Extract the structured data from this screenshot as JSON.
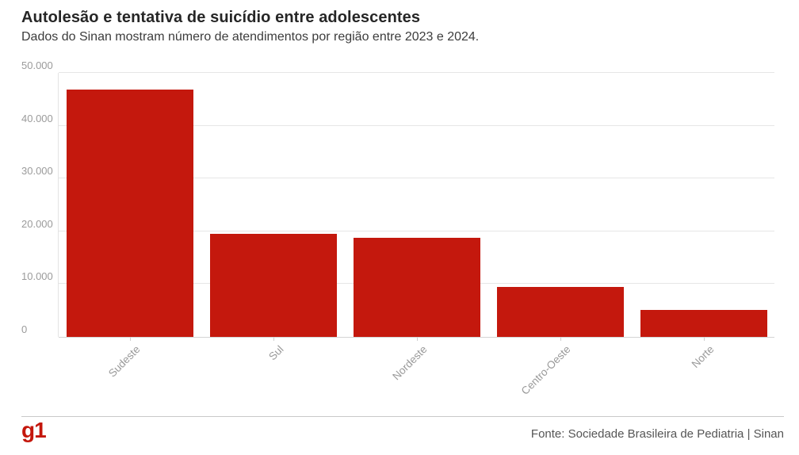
{
  "header": {
    "title": "Autolesão e tentativa de suicídio entre adolescentes",
    "subtitle": "Dados do Sinan mostram número de atendimentos por região entre 2023 e 2024."
  },
  "chart_data": {
    "type": "bar",
    "title": "Autolesão e tentativa de suicídio entre adolescentes",
    "subtitle": "Dados do Sinan mostram número de atendimentos por região entre 2023 e 2024.",
    "categories": [
      "Sudeste",
      "Sul",
      "Nordeste",
      "Centro-Oeste",
      "Norte"
    ],
    "values": [
      46900,
      19500,
      18700,
      9500,
      5100
    ],
    "xlabel": "",
    "ylabel": "",
    "ylim": [
      0,
      50000
    ],
    "yticks": [
      0,
      10000,
      20000,
      30000,
      40000,
      50000
    ],
    "ytick_labels": [
      "0",
      "10.000",
      "20.000",
      "30.000",
      "40.000",
      "50.000"
    ],
    "grid": true,
    "legend": "none",
    "bar_color": "#c4180d",
    "xlabel_rotation": -45
  },
  "footer": {
    "logo_text": "g1",
    "source": "Fonte: Sociedade Brasileira de Pediatria | Sinan"
  },
  "colors": {
    "bar": "#c4180d",
    "logo": "#c4170c",
    "title": "#262626",
    "subtitle": "#3c3c3c",
    "axis_labels": "#9b9b9b",
    "gridline": "#e6e6e6",
    "source_text": "#555555"
  }
}
